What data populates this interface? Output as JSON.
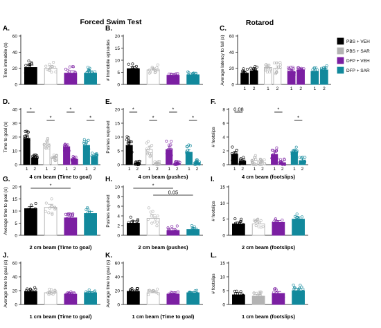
{
  "colors": {
    "pbs_veh": "#000000",
    "pbs_sar": "#b3b3b3",
    "dfp_veh": "#7b1fa2",
    "dfp_sar": "#12899c"
  },
  "section_titles": {
    "forced_swim": "Forced Swim Test",
    "rotarod": "Rotarod"
  },
  "legend": [
    {
      "label": "PBS + VEH",
      "color": "#000000",
      "fill": "#000000"
    },
    {
      "label": "PBS + SAR",
      "color": "#b3b3b3",
      "fill": "#b3b3b3"
    },
    {
      "label": "DFP + VEH",
      "color": "#7b1fa2",
      "fill": "#7b1fa2"
    },
    {
      "label": "DFP + SAR",
      "color": "#12899c",
      "fill": "#12899c"
    }
  ],
  "chart_data": [
    {
      "id": "A",
      "panel_label": "A.",
      "type": "bar",
      "ylabel": "Time immobile (s)",
      "xlabel": "",
      "ylim": [
        0,
        60
      ],
      "yticks": [
        "0",
        "20",
        "40",
        "60"
      ],
      "values": [
        21,
        20,
        14,
        14
      ],
      "errors": [
        3,
        3,
        3,
        3
      ],
      "fills": [
        "pbs_veh",
        "white",
        "dfp_veh",
        "dfp_sar"
      ]
    },
    {
      "id": "B",
      "panel_label": "B.",
      "type": "bar",
      "ylabel": "# Immobile episodes",
      "xlabel": "",
      "ylim": [
        0,
        20
      ],
      "yticks": [
        "0",
        "5",
        "10",
        "15",
        "20"
      ],
      "values": [
        6.5,
        6,
        3.8,
        4
      ],
      "errors": [
        0.8,
        0.8,
        0.7,
        0.7
      ],
      "fills": [
        "pbs_veh",
        "white",
        "dfp_veh",
        "dfp_sar"
      ]
    },
    {
      "id": "C",
      "panel_label": "C.",
      "type": "bar",
      "ylabel": "Average latency to fall (s)",
      "xlabel": "",
      "ylim": [
        0,
        60
      ],
      "yticks": [
        "0",
        "20",
        "40",
        "60"
      ],
      "groups": [
        "pbs_veh",
        "pbs_sar",
        "dfp_veh",
        "dfp_sar"
      ],
      "categories": [
        "1",
        "2"
      ],
      "values": [
        [
          14,
          17
        ],
        [
          21,
          20
        ],
        [
          16,
          18
        ],
        [
          16,
          18
        ]
      ],
      "errors": [
        [
          2,
          2
        ],
        [
          3,
          3
        ],
        [
          2,
          2
        ],
        [
          2,
          2
        ]
      ],
      "fills": [
        [
          "pbs_veh",
          "pbs_veh"
        ],
        [
          "white",
          "white"
        ],
        [
          "dfp_veh",
          "dfp_veh"
        ],
        [
          "dfp_sar",
          "dfp_sar"
        ]
      ]
    },
    {
      "id": "D",
      "panel_label": "D.",
      "type": "bar",
      "ylabel": "Time to goal (s)",
      "xlabel": "4 cm beam (Time to goal)",
      "ylim": [
        0,
        40
      ],
      "yticks": [
        "0",
        "10",
        "20",
        "30",
        "40"
      ],
      "groups": [
        "pbs_veh",
        "pbs_sar",
        "dfp_veh",
        "dfp_sar"
      ],
      "categories": [
        "1",
        "2"
      ],
      "values": [
        [
          19,
          5
        ],
        [
          15,
          5
        ],
        [
          13,
          4
        ],
        [
          14,
          6
        ]
      ],
      "errors": [
        [
          2,
          1
        ],
        [
          1.5,
          1
        ],
        [
          1.5,
          0.8
        ],
        [
          1.5,
          1
        ]
      ],
      "fills": [
        [
          "pbs_veh",
          "pbs_veh"
        ],
        [
          "white",
          "white"
        ],
        [
          "dfp_veh",
          "dfp_veh"
        ],
        [
          "dfp_sar",
          "dfp_sar"
        ]
      ],
      "annotations": [
        "*",
        "*",
        "*",
        "*"
      ]
    },
    {
      "id": "E",
      "panel_label": "E.",
      "type": "bar",
      "ylabel": "Pushes required",
      "xlabel": "4 cm beam (pushes)",
      "ylim": [
        0,
        20
      ],
      "yticks": [
        "0",
        "5",
        "10",
        "15",
        "20"
      ],
      "groups": [
        "pbs_veh",
        "pbs_sar",
        "dfp_veh",
        "dfp_sar"
      ],
      "categories": [
        "1",
        "2"
      ],
      "values": [
        [
          7,
          0.5
        ],
        [
          5.5,
          0.5
        ],
        [
          5.5,
          0.5
        ],
        [
          4.5,
          0.8
        ]
      ],
      "errors": [
        [
          1.2,
          0.3
        ],
        [
          1.2,
          0.3
        ],
        [
          1.2,
          0.3
        ],
        [
          1,
          0.4
        ]
      ],
      "fills": [
        [
          "pbs_veh",
          "pbs_veh"
        ],
        [
          "white",
          "white"
        ],
        [
          "dfp_veh",
          "dfp_veh"
        ],
        [
          "dfp_sar",
          "dfp_sar"
        ]
      ],
      "annotations": [
        "*",
        "*",
        "*",
        "*"
      ]
    },
    {
      "id": "F",
      "panel_label": "F.",
      "type": "bar",
      "ylabel": "# footslips",
      "xlabel": "4 cm beam (footslips)",
      "ylim": [
        0,
        8
      ],
      "yticks": [
        "0",
        "2",
        "4",
        "6",
        "8"
      ],
      "groups": [
        "pbs_veh",
        "pbs_sar",
        "dfp_veh",
        "dfp_sar"
      ],
      "categories": [
        "1",
        "2"
      ],
      "values": [
        [
          1.5,
          0.5
        ],
        [
          0.6,
          0.3
        ],
        [
          1.5,
          0.3
        ],
        [
          1.8,
          0.6
        ]
      ],
      "errors": [
        [
          0.4,
          0.2
        ],
        [
          0.3,
          0.2
        ],
        [
          0.4,
          0.2
        ],
        [
          0.3,
          0.2
        ]
      ],
      "fills": [
        [
          "pbs_veh",
          "pbs_veh"
        ],
        [
          "white",
          "white"
        ],
        [
          "dfp_veh",
          "dfp_veh"
        ],
        [
          "dfp_sar",
          "dfp_sar"
        ]
      ],
      "annotations": [
        "0.08",
        "*",
        "*"
      ]
    },
    {
      "id": "G",
      "panel_label": "G.",
      "type": "bar",
      "ylabel": "Average time to goal (s)",
      "xlabel": "2 cm beam (Time to goal)",
      "ylim": [
        0,
        20
      ],
      "yticks": [
        "0",
        "5",
        "10",
        "15",
        "20"
      ],
      "values": [
        11,
        11.5,
        7.2,
        9
      ],
      "errors": [
        0.8,
        1.3,
        0.7,
        0.9
      ],
      "fills": [
        "pbs_veh",
        "white",
        "dfp_veh",
        "dfp_sar"
      ],
      "annotations": [
        "*"
      ]
    },
    {
      "id": "H",
      "panel_label": "H.",
      "type": "bar",
      "ylabel": "Pushes required",
      "xlabel": "2 cm beam (pushes)",
      "ylim": [
        0,
        10
      ],
      "yticks": [
        "0",
        "2",
        "4",
        "6",
        "8",
        "10"
      ],
      "values": [
        2.5,
        3.5,
        1.0,
        1.2
      ],
      "errors": [
        0.5,
        0.8,
        0.4,
        0.3
      ],
      "fills": [
        "pbs_veh",
        "white",
        "dfp_veh",
        "dfp_sar"
      ],
      "annotations": [
        "*",
        "0.05"
      ]
    },
    {
      "id": "I",
      "panel_label": "I.",
      "type": "bar",
      "ylabel": "# footslips",
      "xlabel": "2 cm beam (footslips)",
      "ylim": [
        0,
        15
      ],
      "yticks": [
        "0",
        "5",
        "10",
        "15"
      ],
      "values": [
        3.5,
        3.5,
        4,
        5
      ],
      "errors": [
        0.6,
        0.6,
        0.6,
        0.7
      ],
      "fills": [
        "pbs_veh",
        "white",
        "dfp_veh",
        "dfp_sar"
      ]
    },
    {
      "id": "J",
      "panel_label": "J.",
      "type": "bar",
      "ylabel": "Average time to goal (s)",
      "xlabel": "1 cm beam (Time to goal)",
      "ylim": [
        0,
        60
      ],
      "yticks": [
        "0",
        "20",
        "40",
        "60"
      ],
      "values": [
        19,
        17,
        15,
        17
      ],
      "errors": [
        2,
        2,
        1.5,
        1.5
      ],
      "fills": [
        "pbs_veh",
        "white",
        "dfp_veh",
        "dfp_sar"
      ]
    },
    {
      "id": "K",
      "panel_label": "K.",
      "type": "bar",
      "ylabel": "Average time to goal (s)",
      "xlabel": "1 cm beam (Time to goal)",
      "ylim": [
        0,
        60
      ],
      "yticks": [
        "0",
        "20",
        "40",
        "60"
      ],
      "values": [
        19,
        17,
        15,
        17
      ],
      "errors": [
        2,
        2,
        1.5,
        1.5
      ],
      "fills": [
        "pbs_veh",
        "white",
        "dfp_veh",
        "dfp_sar"
      ]
    },
    {
      "id": "L",
      "panel_label": "L.",
      "type": "bar",
      "ylabel": "# footslips",
      "xlabel": "1 cm beam (footslips)",
      "ylim": [
        0,
        15
      ],
      "yticks": [
        "0",
        "5",
        "10",
        "15"
      ],
      "values": [
        3.5,
        3,
        4,
        5
      ],
      "errors": [
        0.8,
        0.6,
        0.7,
        0.8
      ],
      "fills": [
        "pbs_veh",
        "pbs_sar",
        "dfp_veh",
        "dfp_sar"
      ]
    }
  ]
}
